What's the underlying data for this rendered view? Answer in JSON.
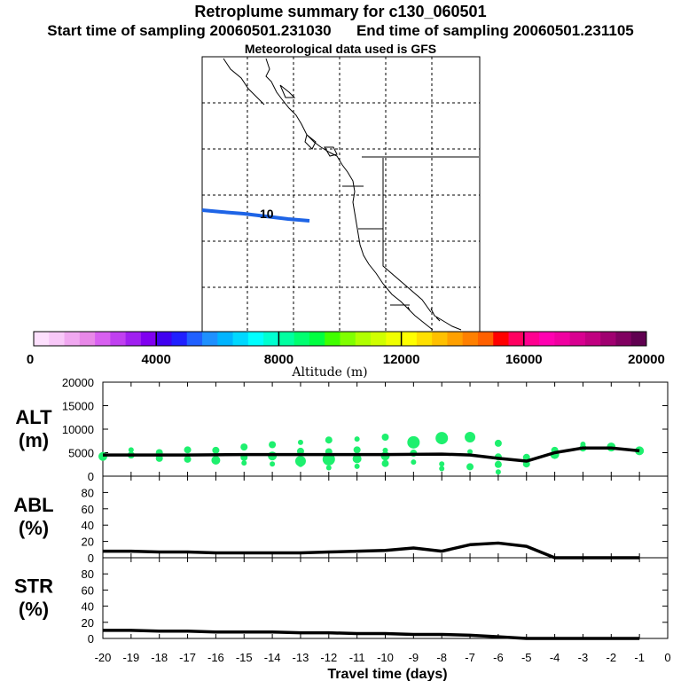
{
  "header": {
    "title": "Retroplume summary for c130_060501",
    "start_time": "Start time of sampling 20060501.231030",
    "end_time": "End time of sampling 20060501.231105",
    "met": "Meteorological data used is GFS"
  },
  "map": {
    "day_marker": "10",
    "trajectory_color": "#1e64e6"
  },
  "colorbar": {
    "title": "Altitude (m)",
    "tick_labels": [
      "0",
      "4000",
      "8000",
      "12000",
      "16000",
      "20000"
    ],
    "colors": [
      "#fde0fd",
      "#f8c8f8",
      "#f0a8f0",
      "#e888e8",
      "#d860f0",
      "#c040f0",
      "#a020f0",
      "#8000f0",
      "#4000f0",
      "#2020ff",
      "#2060ff",
      "#1e90ff",
      "#00b4ff",
      "#00d8ff",
      "#00ffff",
      "#00ffd0",
      "#00ffa0",
      "#00ff70",
      "#00ff40",
      "#40ff00",
      "#80ff00",
      "#b0ff00",
      "#d0ff00",
      "#f0ff00",
      "#ffff00",
      "#ffe000",
      "#ffc000",
      "#ffa000",
      "#ff8000",
      "#ff6000",
      "#ff0000",
      "#ff0060",
      "#ff0090",
      "#ff00b0",
      "#f000a0",
      "#d80090",
      "#c00080",
      "#a00070",
      "#800060",
      "#600050"
    ]
  },
  "chart_data": {
    "type": "line",
    "xlabel": "Travel time (days)",
    "x_ticks": [
      -20,
      -19,
      -18,
      -17,
      -16,
      -15,
      -14,
      -13,
      -12,
      -11,
      -10,
      -9,
      -8,
      -7,
      -6,
      -5,
      -4,
      -3,
      -2,
      -1,
      0
    ],
    "x_tick_labels": [
      "-20",
      "-19",
      "-18",
      "-17",
      "-16",
      "-15",
      "-14",
      "-13",
      "-12",
      "-11",
      "-10",
      "-9",
      "-8",
      "-7",
      "-6",
      "-5",
      "-4",
      "-3",
      "-2",
      "-1",
      "0"
    ],
    "xlim": [
      -20,
      0
    ],
    "dot_color": "#1ef06e",
    "line_color": "#000000",
    "panels": [
      {
        "label_top": "ALT",
        "label_bottom": "(m)",
        "ylim": [
          0,
          20000
        ],
        "y_ticks": [
          0,
          5000,
          10000,
          15000,
          20000
        ],
        "y_tick_labels": [
          "0",
          "5000",
          "10000",
          "15000",
          "20000"
        ],
        "median": {
          "x": [
            -20,
            -19,
            -18,
            -17,
            -16,
            -15,
            -14,
            -13,
            -12,
            -11,
            -10,
            -9,
            -8,
            -7,
            -6,
            -5,
            -4,
            -3,
            -2,
            -1
          ],
          "y": [
            4500,
            4500,
            4500,
            4500,
            4550,
            4600,
            4600,
            4600,
            4600,
            4600,
            4600,
            4650,
            4700,
            4500,
            3800,
            3200,
            5000,
            6000,
            6000,
            5400
          ]
        },
        "dots": [
          {
            "x": -20,
            "y": 4200,
            "s": 5
          },
          {
            "x": -19,
            "y": 5600,
            "s": 3
          },
          {
            "x": -19,
            "y": 4500,
            "s": 4
          },
          {
            "x": -18,
            "y": 5000,
            "s": 4
          },
          {
            "x": -18,
            "y": 3800,
            "s": 4
          },
          {
            "x": -17,
            "y": 5600,
            "s": 4
          },
          {
            "x": -17,
            "y": 3600,
            "s": 4
          },
          {
            "x": -16,
            "y": 5500,
            "s": 4
          },
          {
            "x": -16,
            "y": 3400,
            "s": 5
          },
          {
            "x": -15,
            "y": 6200,
            "s": 4
          },
          {
            "x": -15,
            "y": 4000,
            "s": 4
          },
          {
            "x": -15,
            "y": 2800,
            "s": 3
          },
          {
            "x": -14,
            "y": 6700,
            "s": 4
          },
          {
            "x": -14,
            "y": 4300,
            "s": 5
          },
          {
            "x": -14,
            "y": 2600,
            "s": 3
          },
          {
            "x": -13,
            "y": 7200,
            "s": 3
          },
          {
            "x": -13,
            "y": 5300,
            "s": 4
          },
          {
            "x": -13,
            "y": 3200,
            "s": 6
          },
          {
            "x": -13,
            "y": 2500,
            "s": 3
          },
          {
            "x": -12,
            "y": 7700,
            "s": 4
          },
          {
            "x": -12,
            "y": 5200,
            "s": 4
          },
          {
            "x": -12,
            "y": 3600,
            "s": 7
          },
          {
            "x": -12,
            "y": 1800,
            "s": 3
          },
          {
            "x": -11,
            "y": 7900,
            "s": 3
          },
          {
            "x": -11,
            "y": 5600,
            "s": 4
          },
          {
            "x": -11,
            "y": 3700,
            "s": 5
          },
          {
            "x": -11,
            "y": 2100,
            "s": 3
          },
          {
            "x": -10,
            "y": 8300,
            "s": 4
          },
          {
            "x": -10,
            "y": 5500,
            "s": 3
          },
          {
            "x": -10,
            "y": 4300,
            "s": 5
          },
          {
            "x": -10,
            "y": 2700,
            "s": 4
          },
          {
            "x": -9,
            "y": 7200,
            "s": 7
          },
          {
            "x": -9,
            "y": 4900,
            "s": 4
          },
          {
            "x": -9,
            "y": 3000,
            "s": 3
          },
          {
            "x": -8,
            "y": 8100,
            "s": 7
          },
          {
            "x": -8,
            "y": 2600,
            "s": 3
          },
          {
            "x": -8,
            "y": 1600,
            "s": 3
          },
          {
            "x": -7,
            "y": 8300,
            "s": 6
          },
          {
            "x": -7,
            "y": 5200,
            "s": 3
          },
          {
            "x": -7,
            "y": 2000,
            "s": 4
          },
          {
            "x": -6,
            "y": 7000,
            "s": 4
          },
          {
            "x": -6,
            "y": 4100,
            "s": 4
          },
          {
            "x": -6,
            "y": 2500,
            "s": 4
          },
          {
            "x": -6,
            "y": 900,
            "s": 3
          },
          {
            "x": -5,
            "y": 4000,
            "s": 4
          },
          {
            "x": -5,
            "y": 2600,
            "s": 4
          },
          {
            "x": -4,
            "y": 5500,
            "s": 4
          },
          {
            "x": -4,
            "y": 4600,
            "s": 5
          },
          {
            "x": -3,
            "y": 6800,
            "s": 3
          },
          {
            "x": -3,
            "y": 6000,
            "s": 4
          },
          {
            "x": -2,
            "y": 6200,
            "s": 5
          },
          {
            "x": -1,
            "y": 5400,
            "s": 5
          }
        ]
      },
      {
        "label_top": "ABL",
        "label_bottom": "(%)",
        "ylim": [
          0,
          100
        ],
        "y_ticks": [
          0,
          20,
          40,
          60,
          80
        ],
        "y_tick_labels": [
          "0",
          "20",
          "40",
          "60",
          "80"
        ],
        "median": {
          "x": [
            -20,
            -19,
            -18,
            -17,
            -16,
            -15,
            -14,
            -13,
            -12,
            -11,
            -10,
            -9,
            -8,
            -7,
            -6,
            -5,
            -4,
            -3,
            -2,
            -1
          ],
          "y": [
            8,
            8,
            7,
            7,
            6,
            6,
            6,
            6,
            7,
            8,
            9,
            12,
            8,
            16,
            18,
            14,
            0,
            0,
            0,
            0
          ]
        },
        "dots": []
      },
      {
        "label_top": "STR",
        "label_bottom": "(%)",
        "ylim": [
          0,
          100
        ],
        "y_ticks": [
          0,
          20,
          40,
          60,
          80
        ],
        "y_tick_labels": [
          "0",
          "20",
          "40",
          "60",
          "80"
        ],
        "median": {
          "x": [
            -20,
            -19,
            -18,
            -17,
            -16,
            -15,
            -14,
            -13,
            -12,
            -11,
            -10,
            -9,
            -8,
            -7,
            -6,
            -5,
            -4,
            -3,
            -2,
            -1
          ],
          "y": [
            10,
            10,
            9,
            9,
            8,
            8,
            8,
            7,
            7,
            6,
            6,
            5,
            5,
            4,
            2,
            0,
            0,
            0,
            0,
            0
          ]
        },
        "dots": []
      }
    ]
  }
}
